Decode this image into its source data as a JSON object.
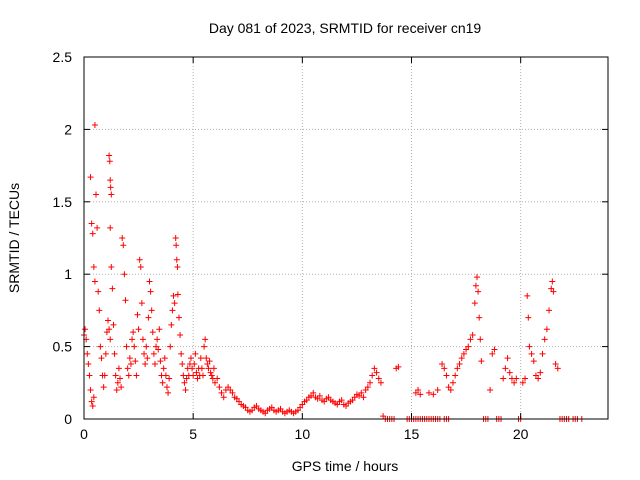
{
  "chart_data": {
    "type": "scatter",
    "title": "Day 081 of 2023, SRMTID for receiver cn19",
    "xlabel": "GPS time / hours",
    "ylabel": "SRMTID / TECUs",
    "xlim": [
      0,
      24
    ],
    "ylim": [
      0,
      2.5
    ],
    "xticks": [
      0,
      5,
      10,
      15,
      20
    ],
    "xtick_labels": [
      "0",
      "5",
      "10",
      "15",
      "20"
    ],
    "yticks": [
      0,
      0.5,
      1,
      1.5,
      2,
      2.5
    ],
    "ytick_labels": [
      "0",
      "0.5",
      "1",
      "1.5",
      "2",
      "2.5"
    ],
    "grid": true,
    "marker": "+",
    "series": [
      {
        "name": "SRMTID",
        "color": "#ff0000",
        "points": [
          [
            0.0,
            0.58
          ],
          [
            0.05,
            0.62
          ],
          [
            0.1,
            0.55
          ],
          [
            0.15,
            0.45
          ],
          [
            0.2,
            0.38
          ],
          [
            0.25,
            0.3
          ],
          [
            0.3,
            0.2
          ],
          [
            0.35,
            0.12
          ],
          [
            0.4,
            0.09
          ],
          [
            0.45,
            0.15
          ],
          [
            0.3,
            1.67
          ],
          [
            0.35,
            1.35
          ],
          [
            0.4,
            1.28
          ],
          [
            0.45,
            1.05
          ],
          [
            0.5,
            0.95
          ],
          [
            0.5,
            2.03
          ],
          [
            0.55,
            1.55
          ],
          [
            0.6,
            1.32
          ],
          [
            0.65,
            0.88
          ],
          [
            0.7,
            0.75
          ],
          [
            0.75,
            0.5
          ],
          [
            0.8,
            0.42
          ],
          [
            0.85,
            0.3
          ],
          [
            0.9,
            0.22
          ],
          [
            0.95,
            0.3
          ],
          [
            1.0,
            0.45
          ],
          [
            1.05,
            0.6
          ],
          [
            1.1,
            0.68
          ],
          [
            1.15,
            0.62
          ],
          [
            1.2,
            0.55
          ],
          [
            1.15,
            1.82
          ],
          [
            1.18,
            1.78
          ],
          [
            1.2,
            1.65
          ],
          [
            1.22,
            1.6
          ],
          [
            1.25,
            1.55
          ],
          [
            1.2,
            1.32
          ],
          [
            1.25,
            1.05
          ],
          [
            1.3,
            0.9
          ],
          [
            1.35,
            0.65
          ],
          [
            1.4,
            0.45
          ],
          [
            1.45,
            0.3
          ],
          [
            1.5,
            0.2
          ],
          [
            1.55,
            0.25
          ],
          [
            1.6,
            0.35
          ],
          [
            1.65,
            0.28
          ],
          [
            1.7,
            0.22
          ],
          [
            1.75,
            1.25
          ],
          [
            1.8,
            1.2
          ],
          [
            1.85,
            1.0
          ],
          [
            1.9,
            0.82
          ],
          [
            1.95,
            0.5
          ],
          [
            2.0,
            0.35
          ],
          [
            2.05,
            0.3
          ],
          [
            2.1,
            0.42
          ],
          [
            2.15,
            0.38
          ],
          [
            2.2,
            0.55
          ],
          [
            2.25,
            0.6
          ],
          [
            2.3,
            0.5
          ],
          [
            2.35,
            0.4
          ],
          [
            2.4,
            0.3
          ],
          [
            2.45,
            0.72
          ],
          [
            2.5,
            0.62
          ],
          [
            2.55,
            1.1
          ],
          [
            2.6,
            1.05
          ],
          [
            2.65,
            0.8
          ],
          [
            2.7,
            0.55
          ],
          [
            2.75,
            0.45
          ],
          [
            2.8,
            0.38
          ],
          [
            2.85,
            0.5
          ],
          [
            2.9,
            0.42
          ],
          [
            2.95,
            0.7
          ],
          [
            3.0,
            0.95
          ],
          [
            3.05,
            0.88
          ],
          [
            3.1,
            0.75
          ],
          [
            3.15,
            0.6
          ],
          [
            3.2,
            0.45
          ],
          [
            3.25,
            0.38
          ],
          [
            3.3,
            0.5
          ],
          [
            3.35,
            0.55
          ],
          [
            3.4,
            0.48
          ],
          [
            3.45,
            0.62
          ],
          [
            3.5,
            0.4
          ],
          [
            3.55,
            0.3
          ],
          [
            3.6,
            0.25
          ],
          [
            3.65,
            0.35
          ],
          [
            3.7,
            0.42
          ],
          [
            3.75,
            0.3
          ],
          [
            3.8,
            0.22
          ],
          [
            3.85,
            0.18
          ],
          [
            3.9,
            0.28
          ],
          [
            3.95,
            0.5
          ],
          [
            4.0,
            0.65
          ],
          [
            4.05,
            0.75
          ],
          [
            4.1,
            0.85
          ],
          [
            4.15,
            0.8
          ],
          [
            4.2,
            1.25
          ],
          [
            4.22,
            1.2
          ],
          [
            4.25,
            1.1
          ],
          [
            4.28,
            1.05
          ],
          [
            4.3,
            0.86
          ],
          [
            4.35,
            0.7
          ],
          [
            4.4,
            0.58
          ],
          [
            4.45,
            0.45
          ],
          [
            4.5,
            0.38
          ],
          [
            4.55,
            0.3
          ],
          [
            4.6,
            0.25
          ],
          [
            4.65,
            0.2
          ],
          [
            4.7,
            0.28
          ],
          [
            4.75,
            0.35
          ],
          [
            4.8,
            0.3
          ],
          [
            4.85,
            0.38
          ],
          [
            4.9,
            0.42
          ],
          [
            4.95,
            0.35
          ],
          [
            5.0,
            0.3
          ],
          [
            5.05,
            0.38
          ],
          [
            5.1,
            0.45
          ],
          [
            5.15,
            0.32
          ],
          [
            5.2,
            0.28
          ],
          [
            5.25,
            0.35
          ],
          [
            5.3,
            0.3
          ],
          [
            5.35,
            0.42
          ],
          [
            5.4,
            0.35
          ],
          [
            5.45,
            0.3
          ],
          [
            5.5,
            0.5
          ],
          [
            5.55,
            0.55
          ],
          [
            5.6,
            0.42
          ],
          [
            5.65,
            0.38
          ],
          [
            5.7,
            0.35
          ],
          [
            5.75,
            0.4
          ],
          [
            5.8,
            0.32
          ],
          [
            5.85,
            0.3
          ],
          [
            5.9,
            0.28
          ],
          [
            5.95,
            0.35
          ],
          [
            6.0,
            0.25
          ],
          [
            6.1,
            0.28
          ],
          [
            6.2,
            0.22
          ],
          [
            6.3,
            0.18
          ],
          [
            6.4,
            0.15
          ],
          [
            6.5,
            0.2
          ],
          [
            6.6,
            0.22
          ],
          [
            6.7,
            0.2
          ],
          [
            6.8,
            0.18
          ],
          [
            6.9,
            0.15
          ],
          [
            7.0,
            0.14
          ],
          [
            7.1,
            0.12
          ],
          [
            7.2,
            0.1
          ],
          [
            7.3,
            0.09
          ],
          [
            7.4,
            0.08
          ],
          [
            7.5,
            0.06
          ],
          [
            7.6,
            0.05
          ],
          [
            7.7,
            0.06
          ],
          [
            7.8,
            0.08
          ],
          [
            7.9,
            0.09
          ],
          [
            8.0,
            0.07
          ],
          [
            8.1,
            0.06
          ],
          [
            8.2,
            0.05
          ],
          [
            8.3,
            0.04
          ],
          [
            8.4,
            0.06
          ],
          [
            8.5,
            0.07
          ],
          [
            8.6,
            0.08
          ],
          [
            8.7,
            0.06
          ],
          [
            8.8,
            0.05
          ],
          [
            8.9,
            0.06
          ],
          [
            9.0,
            0.07
          ],
          [
            9.1,
            0.05
          ],
          [
            9.2,
            0.04
          ],
          [
            9.3,
            0.05
          ],
          [
            9.4,
            0.06
          ],
          [
            9.5,
            0.05
          ],
          [
            9.6,
            0.04
          ],
          [
            9.7,
            0.05
          ],
          [
            9.8,
            0.06
          ],
          [
            9.9,
            0.08
          ],
          [
            10.0,
            0.1
          ],
          [
            10.1,
            0.12
          ],
          [
            10.2,
            0.13
          ],
          [
            10.3,
            0.15
          ],
          [
            10.4,
            0.16
          ],
          [
            10.5,
            0.18
          ],
          [
            10.6,
            0.15
          ],
          [
            10.7,
            0.14
          ],
          [
            10.8,
            0.16
          ],
          [
            10.9,
            0.13
          ],
          [
            11.0,
            0.12
          ],
          [
            11.1,
            0.14
          ],
          [
            11.2,
            0.15
          ],
          [
            11.3,
            0.13
          ],
          [
            11.4,
            0.12
          ],
          [
            11.5,
            0.11
          ],
          [
            11.6,
            0.1
          ],
          [
            11.7,
            0.12
          ],
          [
            11.8,
            0.13
          ],
          [
            11.9,
            0.1
          ],
          [
            12.0,
            0.09
          ],
          [
            12.1,
            0.11
          ],
          [
            12.2,
            0.12
          ],
          [
            12.3,
            0.13
          ],
          [
            12.4,
            0.15
          ],
          [
            12.5,
            0.17
          ],
          [
            12.6,
            0.16
          ],
          [
            12.7,
            0.18
          ],
          [
            12.8,
            0.15
          ],
          [
            12.9,
            0.2
          ],
          [
            13.0,
            0.22
          ],
          [
            13.1,
            0.25
          ],
          [
            13.2,
            0.3
          ],
          [
            13.3,
            0.35
          ],
          [
            13.4,
            0.32
          ],
          [
            13.5,
            0.28
          ],
          [
            13.6,
            0.25
          ],
          [
            13.7,
            0.02
          ],
          [
            13.8,
            0.0
          ],
          [
            13.9,
            0.0
          ],
          [
            14.0,
            0.0
          ],
          [
            14.1,
            0.0
          ],
          [
            14.2,
            0.0
          ],
          [
            14.3,
            0.35
          ],
          [
            14.4,
            0.36
          ],
          [
            14.8,
            0.0
          ],
          [
            14.9,
            0.0
          ],
          [
            15.0,
            0.0
          ],
          [
            15.1,
            0.0
          ],
          [
            15.2,
            0.0
          ],
          [
            15.3,
            0.0
          ],
          [
            15.4,
            0.0
          ],
          [
            15.5,
            0.0
          ],
          [
            15.6,
            0.0
          ],
          [
            15.7,
            0.0
          ],
          [
            15.8,
            0.0
          ],
          [
            15.9,
            0.0
          ],
          [
            16.0,
            0.0
          ],
          [
            16.1,
            0.0
          ],
          [
            16.2,
            0.0
          ],
          [
            16.3,
            0.0
          ],
          [
            16.5,
            0.0
          ],
          [
            16.6,
            0.0
          ],
          [
            16.7,
            0.0
          ],
          [
            15.2,
            0.18
          ],
          [
            15.3,
            0.2
          ],
          [
            15.4,
            0.17
          ],
          [
            15.8,
            0.18
          ],
          [
            16.0,
            0.17
          ],
          [
            16.2,
            0.2
          ],
          [
            16.4,
            0.38
          ],
          [
            16.5,
            0.35
          ],
          [
            16.6,
            0.3
          ],
          [
            16.7,
            0.22
          ],
          [
            16.8,
            0.2
          ],
          [
            16.9,
            0.25
          ],
          [
            17.0,
            0.3
          ],
          [
            17.1,
            0.35
          ],
          [
            17.2,
            0.38
          ],
          [
            17.3,
            0.42
          ],
          [
            17.4,
            0.45
          ],
          [
            17.5,
            0.48
          ],
          [
            17.6,
            0.5
          ],
          [
            17.7,
            0.55
          ],
          [
            17.8,
            0.58
          ],
          [
            17.9,
            0.8
          ],
          [
            17.95,
            0.92
          ],
          [
            18.0,
            0.98
          ],
          [
            18.05,
            0.88
          ],
          [
            18.1,
            0.7
          ],
          [
            18.15,
            0.55
          ],
          [
            18.2,
            0.4
          ],
          [
            18.3,
            0.0
          ],
          [
            18.4,
            0.0
          ],
          [
            18.5,
            0.0
          ],
          [
            18.6,
            0.2
          ],
          [
            18.7,
            0.45
          ],
          [
            18.8,
            0.48
          ],
          [
            18.9,
            0.0
          ],
          [
            19.0,
            0.0
          ],
          [
            19.1,
            0.0
          ],
          [
            19.2,
            0.28
          ],
          [
            19.3,
            0.35
          ],
          [
            19.4,
            0.42
          ],
          [
            19.5,
            0.32
          ],
          [
            19.6,
            0.28
          ],
          [
            19.7,
            0.25
          ],
          [
            19.8,
            0.28
          ],
          [
            19.9,
            0.0
          ],
          [
            20.0,
            0.0
          ],
          [
            20.1,
            0.25
          ],
          [
            20.2,
            0.28
          ],
          [
            20.3,
            0.85
          ],
          [
            20.35,
            0.7
          ],
          [
            20.4,
            0.5
          ],
          [
            20.5,
            0.45
          ],
          [
            20.6,
            0.4
          ],
          [
            20.7,
            0.3
          ],
          [
            20.8,
            0.28
          ],
          [
            20.9,
            0.32
          ],
          [
            21.0,
            0.45
          ],
          [
            21.1,
            0.55
          ],
          [
            21.2,
            0.62
          ],
          [
            21.3,
            0.75
          ],
          [
            21.4,
            0.9
          ],
          [
            21.45,
            0.95
          ],
          [
            21.5,
            0.88
          ],
          [
            21.6,
            0.38
          ],
          [
            21.7,
            0.35
          ],
          [
            21.8,
            0.0
          ],
          [
            21.9,
            0.0
          ],
          [
            22.0,
            0.0
          ],
          [
            22.1,
            0.0
          ],
          [
            22.2,
            0.0
          ],
          [
            22.4,
            0.0
          ],
          [
            22.5,
            0.0
          ],
          [
            22.6,
            0.0
          ],
          [
            22.8,
            0.0
          ]
        ]
      }
    ]
  }
}
